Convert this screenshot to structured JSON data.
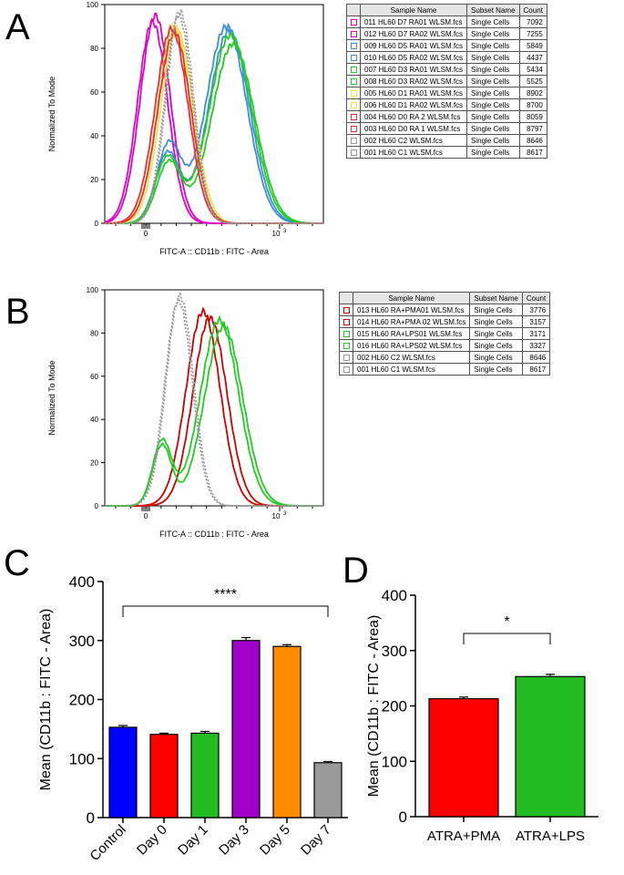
{
  "panels": {
    "a": "A",
    "b": "B",
    "c": "C",
    "d": "D"
  },
  "chart_data": [
    {
      "id": "A",
      "type": "line",
      "title": "",
      "xlabel": "FITC-A :: CD11b : FITC - Area",
      "ylabel": "Normalized To Mode",
      "ylim": [
        0,
        100
      ],
      "yticks": [
        "0",
        "20",
        "40",
        "60",
        "80",
        "100"
      ],
      "xticks": [
        {
          "label": "0",
          "sup": ""
        },
        {
          "label": "10",
          "sup": "3"
        }
      ],
      "legend_headers": {
        "name": "Sample Name",
        "subset": "Subset Name",
        "count": "Count"
      },
      "series": [
        {
          "name": "011 HL60 D7 RA01 WLSM.fcs",
          "subset": "Single Cells",
          "count": "7092",
          "color": "#e000c8",
          "dashed": false,
          "peak": 1.75,
          "width": 0.55,
          "height": 92,
          "shoulder": null
        },
        {
          "name": "012 HL60 D7 RA02 WLSM.fcs",
          "subset": "Single Cells",
          "count": "7255",
          "color": "#e000c8",
          "dashed": false,
          "peak": 1.85,
          "width": 0.55,
          "height": 95,
          "shoulder": null
        },
        {
          "name": "009 HL60 D5 RA01 WLSM.fcs",
          "subset": "Single Cells",
          "count": "5849",
          "color": "#3a8fd8",
          "dashed": false,
          "peak": 4.45,
          "width": 0.75,
          "height": 90,
          "shoulder": {
            "at": 2.35,
            "h": 36,
            "w": 0.45
          }
        },
        {
          "name": "010 HL60 D5 RA02 WLSM.fcs",
          "subset": "Single Cells",
          "count": "4437",
          "color": "#3a8fd8",
          "dashed": false,
          "peak": 4.55,
          "width": 0.75,
          "height": 88,
          "shoulder": {
            "at": 2.3,
            "h": 32,
            "w": 0.45
          }
        },
        {
          "name": "007 HL60 D3 RA01 WLSM.fcs",
          "subset": "Single Cells",
          "count": "5434",
          "color": "#22cc22",
          "dashed": false,
          "peak": 4.6,
          "width": 0.78,
          "height": 86,
          "shoulder": {
            "at": 2.3,
            "h": 30,
            "w": 0.45
          }
        },
        {
          "name": "008 HL60 D3 RA02 WLSM.fcs",
          "subset": "Single Cells",
          "count": "5525",
          "color": "#22cc22",
          "dashed": false,
          "peak": 4.7,
          "width": 0.78,
          "height": 82,
          "shoulder": {
            "at": 2.35,
            "h": 28,
            "w": 0.45
          }
        },
        {
          "name": "005 HL60 D1 RA01 WLSM.fcs",
          "subset": "Single Cells",
          "count": "8902",
          "color": "#f4e04a",
          "dashed": false,
          "peak": 2.55,
          "width": 0.6,
          "height": 90,
          "shoulder": null
        },
        {
          "name": "006 HL60 D1 RA02 WLSM.fcs",
          "subset": "Single Cells",
          "count": "8700",
          "color": "#f4e04a",
          "dashed": false,
          "peak": 2.65,
          "width": 0.6,
          "height": 88,
          "shoulder": null
        },
        {
          "name": "004 HL60 D0 RA 2 WLSM.fcs",
          "subset": "Single Cells",
          "count": "8059",
          "color": "#e83030",
          "dashed": false,
          "peak": 2.45,
          "width": 0.6,
          "height": 89,
          "shoulder": null
        },
        {
          "name": "003 HL60 D0 RA 1 WLSM.fcs",
          "subset": "Single Cells",
          "count": "8797",
          "color": "#e83030",
          "dashed": false,
          "peak": 2.55,
          "width": 0.6,
          "height": 87,
          "shoulder": null
        },
        {
          "name": "002 HL60 C2 WLSM.fcs",
          "subset": "Single Cells",
          "count": "8646",
          "color": "#999999",
          "dashed": true,
          "peak": 2.75,
          "width": 0.5,
          "height": 97,
          "shoulder": null
        },
        {
          "name": "001 HL60 C1 WLSM.fcs",
          "subset": "Single Cells",
          "count": "8617",
          "color": "#999999",
          "dashed": true,
          "peak": 2.7,
          "width": 0.5,
          "height": 95,
          "shoulder": null
        }
      ]
    },
    {
      "id": "B",
      "type": "line",
      "title": "",
      "xlabel": "FITC-A :: CD11b : FITC - Area",
      "ylabel": "Normalized To Mode",
      "ylim": [
        0,
        100
      ],
      "yticks": [
        "0",
        "20",
        "40",
        "60",
        "80",
        "100"
      ],
      "xticks": [
        {
          "label": "0",
          "sup": ""
        },
        {
          "label": "10",
          "sup": "3"
        }
      ],
      "legend_headers": {
        "name": "Sample Name",
        "subset": "Subset Name",
        "count": "Count"
      },
      "series": [
        {
          "name": "013 HL60 RA+PMA01 WLSM.fcs",
          "subset": "Single Cells",
          "count": "3776",
          "color": "#cc0000",
          "dashed": false,
          "peak": 3.6,
          "width": 0.62,
          "height": 90,
          "shoulder": null
        },
        {
          "name": "014 HL60 RA+PMA 02 WLSM.fcs",
          "subset": "Single Cells",
          "count": "3157",
          "color": "#cc0000",
          "dashed": false,
          "peak": 3.85,
          "width": 0.62,
          "height": 87,
          "shoulder": null
        },
        {
          "name": "015 HL60 RA+LPS01 WLSM.fcs",
          "subset": "Single Cells",
          "count": "3171",
          "color": "#22cc22",
          "dashed": false,
          "peak": 4.2,
          "width": 0.7,
          "height": 86,
          "shoulder": {
            "at": 2.1,
            "h": 30,
            "w": 0.35
          }
        },
        {
          "name": "016 HL60 RA+LPS02 WLSM.fcs",
          "subset": "Single Cells",
          "count": "3327",
          "color": "#22cc22",
          "dashed": false,
          "peak": 4.35,
          "width": 0.7,
          "height": 83,
          "shoulder": {
            "at": 2.1,
            "h": 28,
            "w": 0.35
          }
        },
        {
          "name": "002 HL60 C2 WLSM.fcs",
          "subset": "Single Cells",
          "count": "8646",
          "color": "#999999",
          "dashed": true,
          "peak": 2.75,
          "width": 0.5,
          "height": 97,
          "shoulder": null
        },
        {
          "name": "001 HL60 C1 WLSM.fcs",
          "subset": "Single Cells",
          "count": "8617",
          "color": "#999999",
          "dashed": true,
          "peak": 2.7,
          "width": 0.5,
          "height": 95,
          "shoulder": null
        }
      ]
    },
    {
      "id": "C",
      "type": "bar",
      "title": "",
      "xlabel": "",
      "ylabel": "Mean (CD11b : FITC - Area)",
      "ylim": [
        0,
        400
      ],
      "yticks": [
        "0",
        "100",
        "200",
        "300",
        "400"
      ],
      "categories": [
        "Control",
        "Day 0",
        "Day 1",
        "Day 3",
        "Day 5",
        "Day 7"
      ],
      "values": [
        153,
        141,
        143,
        300,
        290,
        93
      ],
      "errors": [
        3,
        2,
        3,
        5,
        3,
        2
      ],
      "colors": [
        "#0000ff",
        "#ff0000",
        "#22bb22",
        "#a000c8",
        "#ff8c00",
        "#999999"
      ],
      "significance": {
        "label": "****",
        "from": "Control",
        "to": "Day 7"
      }
    },
    {
      "id": "D",
      "type": "bar",
      "title": "",
      "xlabel": "",
      "ylabel": "Mean (CD11b : FITC - Area)",
      "ylim": [
        0,
        400
      ],
      "yticks": [
        "0",
        "100",
        "200",
        "300",
        "400"
      ],
      "categories": [
        "ATRA+PMA",
        "ATRA+LPS"
      ],
      "values": [
        213,
        253
      ],
      "errors": [
        3,
        4
      ],
      "colors": [
        "#ff0000",
        "#22bb22"
      ],
      "significance": {
        "label": "*",
        "from": "ATRA+PMA",
        "to": "ATRA+LPS"
      }
    }
  ]
}
